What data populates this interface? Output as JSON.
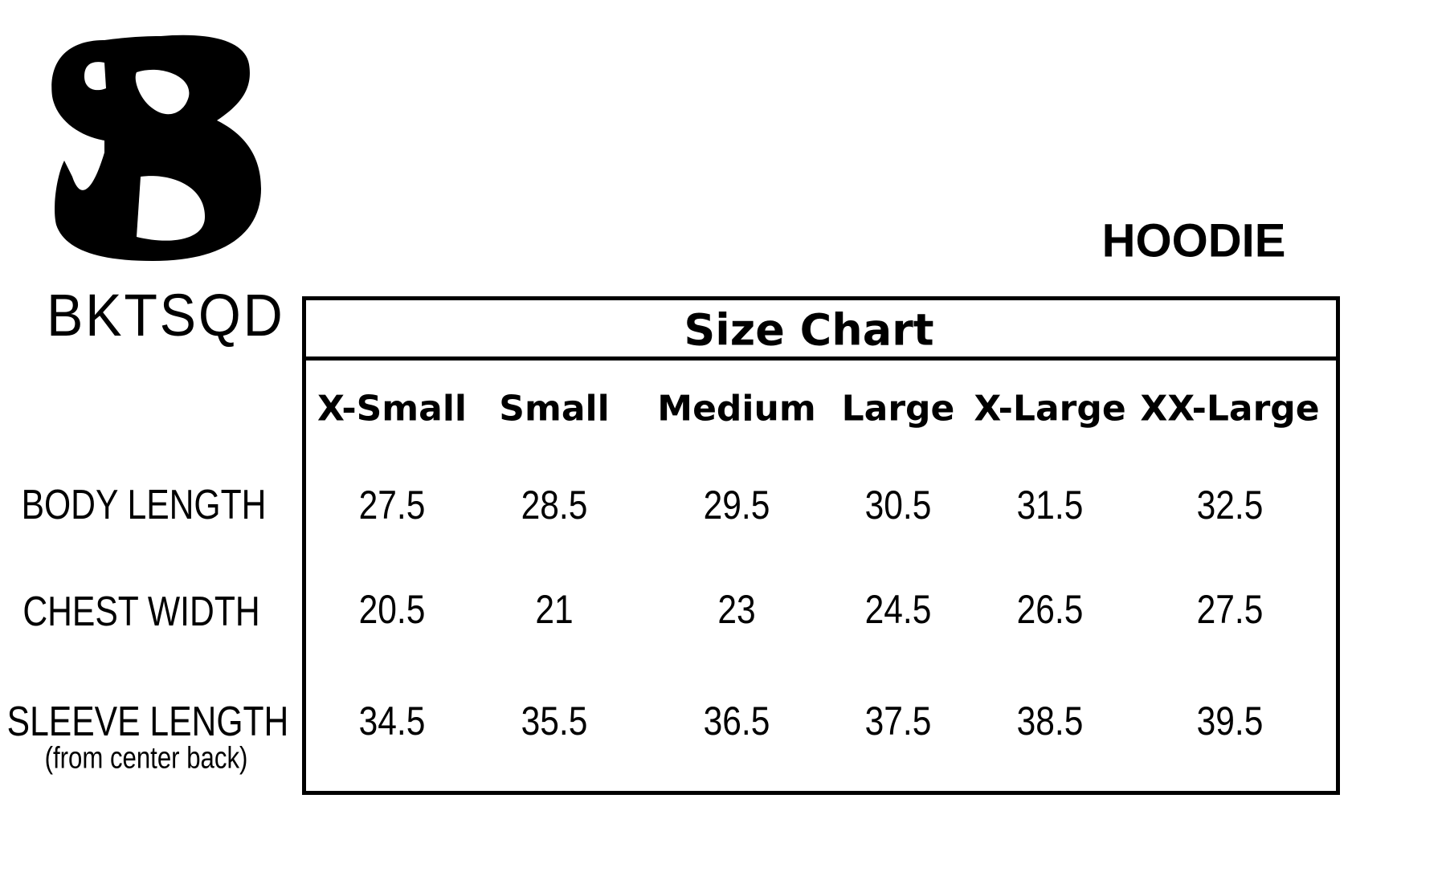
{
  "brand": {
    "name": "BKTSQD",
    "logo_letter": "B"
  },
  "product": "HOODIE",
  "table": {
    "title": "Size Chart",
    "columns": [
      "X-Small",
      "Small",
      "Medium",
      "Large",
      "X-Large",
      "XX-Large"
    ],
    "rows": [
      {
        "label": "BODY LENGTH",
        "sublabel": "",
        "values": [
          "27.5",
          "28.5",
          "29.5",
          "30.5",
          "31.5",
          "32.5"
        ]
      },
      {
        "label": "CHEST WIDTH",
        "sublabel": "",
        "values": [
          "20.5",
          "21",
          "23",
          "24.5",
          "26.5",
          "27.5"
        ]
      },
      {
        "label": "SLEEVE LENGTH",
        "sublabel": "(from center back)",
        "values": [
          "34.5",
          "35.5",
          "36.5",
          "37.5",
          "38.5",
          "39.5"
        ]
      }
    ]
  }
}
